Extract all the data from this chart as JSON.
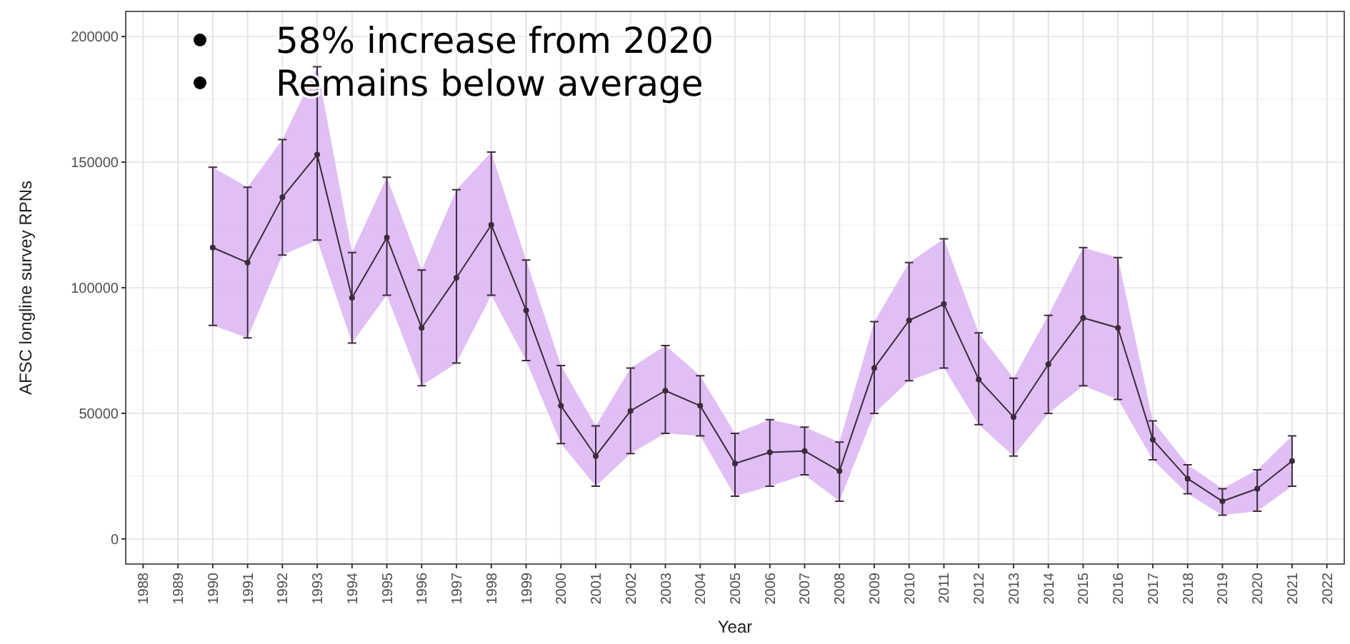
{
  "chart_data": {
    "type": "line",
    "xlabel": "Year",
    "ylabel": "AFSC longline survey RPNs",
    "annotations": [
      "58% increase from 2020",
      "Remains below average"
    ],
    "categories": [
      "1988",
      "1989",
      "1990",
      "1991",
      "1992",
      "1993",
      "1994",
      "1995",
      "1996",
      "1997",
      "1998",
      "1999",
      "2000",
      "2001",
      "2002",
      "2003",
      "2004",
      "2005",
      "2006",
      "2007",
      "2008",
      "2009",
      "2010",
      "2011",
      "2012",
      "2013",
      "2014",
      "2015",
      "2016",
      "2017",
      "2018",
      "2019",
      "2020",
      "2021",
      "2022"
    ],
    "series": [
      {
        "color": "#3b2b3b",
        "values": [
          null,
          null,
          116000,
          110000,
          136000,
          153000,
          96000,
          120000,
          84000,
          104000,
          125000,
          91000,
          53000,
          33000,
          51000,
          59000,
          53000,
          30000,
          34500,
          35000,
          27000,
          68000,
          87000,
          93500,
          63500,
          48500,
          69500,
          88000,
          84000,
          39500,
          24000,
          15000,
          20000,
          31000,
          null
        ],
        "lower": [
          null,
          null,
          85000,
          80000,
          113000,
          119000,
          78000,
          97000,
          61000,
          70000,
          97000,
          71000,
          38000,
          21000,
          34000,
          42000,
          41000,
          17000,
          21000,
          25500,
          15000,
          50000,
          63000,
          68000,
          45500,
          33000,
          50000,
          61000,
          55500,
          31500,
          18000,
          9500,
          11000,
          21000,
          null
        ],
        "upper": [
          null,
          null,
          148000,
          140000,
          159000,
          188000,
          114000,
          144000,
          107000,
          139000,
          154000,
          111000,
          69000,
          45000,
          68000,
          77000,
          65000,
          42000,
          47500,
          44500,
          38500,
          86500,
          110000,
          119500,
          82000,
          64000,
          89000,
          116000,
          112000,
          47000,
          29500,
          20000,
          27500,
          41000,
          null
        ],
        "errors": [
          null,
          null,
          [
            85000,
            148000
          ],
          [
            80000,
            140000
          ],
          [
            113000,
            159000
          ],
          [
            119000,
            188000
          ],
          [
            78000,
            114000
          ],
          [
            97000,
            144000
          ],
          [
            61000,
            107000
          ],
          [
            70000,
            139000
          ],
          [
            97000,
            154000
          ],
          [
            71000,
            111000
          ],
          [
            38000,
            69000
          ],
          [
            21000,
            45000
          ],
          [
            34000,
            68000
          ],
          [
            42000,
            77000
          ],
          [
            41000,
            65000
          ],
          [
            17000,
            42000
          ],
          [
            21000,
            47500
          ],
          [
            25500,
            44500
          ],
          [
            15000,
            38500
          ],
          [
            50000,
            86500
          ],
          [
            63000,
            110000
          ],
          [
            68000,
            119500
          ],
          [
            45500,
            82000
          ],
          [
            33000,
            64000
          ],
          [
            50000,
            89000
          ],
          [
            61000,
            116000
          ],
          [
            55500,
            112000
          ],
          [
            31500,
            47000
          ],
          [
            18000,
            29500
          ],
          [
            9500,
            20000
          ],
          [
            11000,
            27500
          ],
          [
            21000,
            41000
          ],
          null
        ]
      }
    ],
    "ylim": [
      -10000,
      210000
    ],
    "yticks": [
      0,
      50000,
      100000,
      150000,
      200000
    ],
    "grid": true,
    "marker": "circle",
    "line_style": "solid"
  }
}
